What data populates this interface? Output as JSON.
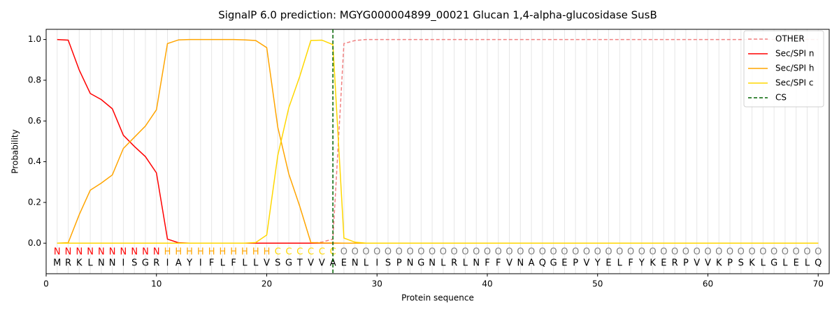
{
  "chart_data": {
    "type": "line",
    "title": "SignalP 6.0 prediction: MGYG000004899_00021 Glucan 1,4-alpha-glucosidase SusB",
    "x_label": "Protein sequence",
    "y_label": "Probability",
    "xlim": [
      0,
      71
    ],
    "ylim": [
      -0.15,
      1.05
    ],
    "xticks": [
      0,
      10,
      20,
      30,
      40,
      50,
      60,
      70
    ],
    "yticks": [
      {
        "value": 0,
        "label": "0.0"
      },
      0.2,
      0.4,
      0.6,
      0.8,
      {
        "value": 1,
        "label": "1.0"
      }
    ],
    "grid": true,
    "legend": "upper right",
    "x": [
      1,
      2,
      3,
      4,
      5,
      6,
      7,
      8,
      9,
      10,
      11,
      12,
      13,
      14,
      15,
      16,
      17,
      18,
      19,
      20,
      21,
      22,
      23,
      24,
      25,
      26,
      27,
      28,
      29,
      30,
      31,
      32,
      33,
      34,
      35,
      36,
      37,
      38,
      39,
      40,
      41,
      42,
      43,
      44,
      45,
      46,
      47,
      48,
      49,
      50,
      51,
      52,
      53,
      54,
      55,
      56,
      57,
      58,
      59,
      60,
      61,
      62,
      63,
      64,
      65,
      66,
      67,
      68,
      69,
      70
    ],
    "residues": [
      "M",
      "R",
      "K",
      "L",
      "N",
      "N",
      "I",
      "S",
      "G",
      "R",
      "I",
      "A",
      "Y",
      "I",
      "F",
      "L",
      "F",
      "L",
      "L",
      "V",
      "S",
      "G",
      "T",
      "V",
      "V",
      "A",
      "E",
      "N",
      "L",
      "I",
      "S",
      "P",
      "N",
      "G",
      "N",
      "L",
      "R",
      "L",
      "N",
      "F",
      "F",
      "V",
      "N",
      "A",
      "Q",
      "G",
      "E",
      "P",
      "V",
      "Y",
      "E",
      "L",
      "F",
      "Y",
      "K",
      "E",
      "R",
      "P",
      "V",
      "V",
      "K",
      "P",
      "S",
      "K",
      "L",
      "G",
      "L",
      "E",
      "L",
      "Q"
    ],
    "labels": [
      "N",
      "N",
      "N",
      "N",
      "N",
      "N",
      "N",
      "N",
      "N",
      "N",
      "H",
      "H",
      "H",
      "H",
      "H",
      "H",
      "H",
      "H",
      "H",
      "H",
      "C",
      "C",
      "C",
      "C",
      "C",
      "C",
      "O",
      "O",
      "O",
      "O",
      "O",
      "O",
      "O",
      "O",
      "O",
      "O",
      "O",
      "O",
      "O",
      "O",
      "O",
      "O",
      "O",
      "O",
      "O",
      "O",
      "O",
      "O",
      "O",
      "O",
      "O",
      "O",
      "O",
      "O",
      "O",
      "O",
      "O",
      "O",
      "O",
      "O",
      "O",
      "O",
      "O",
      "O",
      "O",
      "O",
      "O",
      "O",
      "O",
      "O"
    ],
    "label_colors": {
      "N": "#ff0000",
      "H": "#ffa500",
      "C": "#ffd700",
      "O": "#808080"
    },
    "series": [
      {
        "name": "OTHER",
        "color": "#f08080",
        "dash": true,
        "values": [
          0,
          0,
          0,
          0,
          0,
          0,
          0,
          0,
          0,
          0,
          0,
          0,
          0,
          0,
          0,
          0,
          0,
          0,
          0,
          0,
          0,
          0,
          0,
          0,
          0.005,
          0.02,
          0.98,
          0.995,
          1,
          1,
          1,
          1,
          1,
          1,
          1,
          1,
          1,
          1,
          1,
          1,
          1,
          1,
          1,
          1,
          1,
          1,
          1,
          1,
          1,
          1,
          1,
          1,
          1,
          1,
          1,
          1,
          1,
          1,
          1,
          1,
          1,
          1,
          1,
          1,
          1,
          1,
          1,
          1,
          1,
          1
        ]
      },
      {
        "name": "Sec/SPI n",
        "color": "#ff0000",
        "values": [
          1,
          0.997,
          0.85,
          0.735,
          0.705,
          0.66,
          0.53,
          0.475,
          0.425,
          0.345,
          0.02,
          0.002,
          0,
          0,
          0,
          0,
          0,
          0,
          0,
          0,
          0,
          0,
          0,
          0,
          0,
          0,
          0,
          0,
          0,
          0,
          0,
          0,
          0,
          0,
          0,
          0,
          0,
          0,
          0,
          0,
          0,
          0,
          0,
          0,
          0,
          0,
          0,
          0,
          0,
          0,
          0,
          0,
          0,
          0,
          0,
          0,
          0,
          0,
          0,
          0,
          0,
          0,
          0,
          0,
          0,
          0,
          0,
          0,
          0,
          0
        ]
      },
      {
        "name": "Sec/SPI h",
        "color": "#ffa500",
        "values": [
          0,
          0.002,
          0.14,
          0.26,
          0.295,
          0.335,
          0.465,
          0.52,
          0.575,
          0.655,
          0.98,
          0.998,
          1,
          1,
          1,
          1,
          1,
          0.998,
          0.995,
          0.96,
          0.57,
          0.34,
          0.18,
          0.003,
          0.001,
          0.001,
          0,
          0,
          0,
          0,
          0,
          0,
          0,
          0,
          0,
          0,
          0,
          0,
          0,
          0,
          0,
          0,
          0,
          0,
          0,
          0,
          0,
          0,
          0,
          0,
          0,
          0,
          0,
          0,
          0,
          0,
          0,
          0,
          0,
          0,
          0,
          0,
          0,
          0,
          0,
          0,
          0,
          0,
          0,
          0
        ]
      },
      {
        "name": "Sec/SPI c",
        "color": "#ffd700",
        "values": [
          0,
          0,
          0,
          0,
          0,
          0,
          0,
          0,
          0,
          0,
          0,
          0,
          0,
          0,
          0,
          0,
          0,
          0,
          0.003,
          0.04,
          0.43,
          0.665,
          0.82,
          0.995,
          0.997,
          0.975,
          0.025,
          0.005,
          0,
          0,
          0,
          0,
          0,
          0,
          0,
          0,
          0,
          0,
          0,
          0,
          0,
          0,
          0,
          0,
          0,
          0,
          0,
          0,
          0,
          0,
          0,
          0,
          0,
          0,
          0,
          0,
          0,
          0,
          0,
          0,
          0,
          0,
          0,
          0,
          0,
          0,
          0,
          0,
          0,
          0
        ]
      }
    ],
    "cs": {
      "name": "CS",
      "x": 26,
      "color": "#006400"
    }
  }
}
